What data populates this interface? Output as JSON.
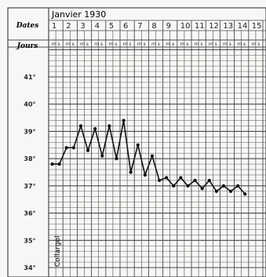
{
  "header": {
    "dates_label": "Dates",
    "jours_label": "Jours",
    "month_title": "Janvier 1930",
    "days": [
      "1",
      "2",
      "3",
      "4",
      "5",
      "6",
      "7",
      "8",
      "9",
      "10",
      "11",
      "12",
      "13",
      "14",
      "15"
    ],
    "period_label": "m s"
  },
  "annotation": "Collargol",
  "chart_data": {
    "type": "line",
    "title": "Janvier 1930",
    "xlabel": "",
    "ylabel": "",
    "y_ticks": [
      "34°",
      "35°",
      "36°",
      "37°",
      "38°",
      "39°",
      "40°",
      "41°"
    ],
    "ylim": [
      34,
      42
    ],
    "grid": true,
    "series": [
      {
        "values": [
          {
            "day": 1,
            "period": "m",
            "temp": 37.8
          },
          {
            "day": 1,
            "period": "s",
            "temp": 37.8
          },
          {
            "day": 2,
            "period": "m",
            "temp": 38.4
          },
          {
            "day": 2,
            "period": "s",
            "temp": 38.4
          },
          {
            "day": 3,
            "period": "m",
            "temp": 39.2
          },
          {
            "day": 3,
            "period": "s",
            "temp": 38.3
          },
          {
            "day": 4,
            "period": "m",
            "temp": 39.1
          },
          {
            "day": 4,
            "period": "s",
            "temp": 38.1
          },
          {
            "day": 5,
            "period": "m",
            "temp": 39.2
          },
          {
            "day": 5,
            "period": "s",
            "temp": 38.0
          },
          {
            "day": 6,
            "period": "m",
            "temp": 39.4
          },
          {
            "day": 6,
            "period": "s",
            "temp": 37.5
          },
          {
            "day": 7,
            "period": "m",
            "temp": 38.5
          },
          {
            "day": 7,
            "period": "s",
            "temp": 37.4
          },
          {
            "day": 8,
            "period": "m",
            "temp": 38.1
          },
          {
            "day": 8,
            "period": "s",
            "temp": 37.2
          },
          {
            "day": 9,
            "period": "m",
            "temp": 37.3
          },
          {
            "day": 9,
            "period": "s",
            "temp": 37.0
          },
          {
            "day": 10,
            "period": "m",
            "temp": 37.3
          },
          {
            "day": 10,
            "period": "s",
            "temp": 37.0
          },
          {
            "day": 11,
            "period": "m",
            "temp": 37.2
          },
          {
            "day": 11,
            "period": "s",
            "temp": 36.9
          },
          {
            "day": 12,
            "period": "m",
            "temp": 37.2
          },
          {
            "day": 12,
            "period": "s",
            "temp": 36.8
          },
          {
            "day": 13,
            "period": "m",
            "temp": 37.0
          },
          {
            "day": 13,
            "period": "s",
            "temp": 36.8
          },
          {
            "day": 14,
            "period": "m",
            "temp": 37.0
          },
          {
            "day": 14,
            "period": "s",
            "temp": 36.7
          }
        ]
      }
    ]
  },
  "colors": {
    "grid": "#4a4a4a",
    "line": "#111111",
    "paper": "#f7f7f5"
  }
}
